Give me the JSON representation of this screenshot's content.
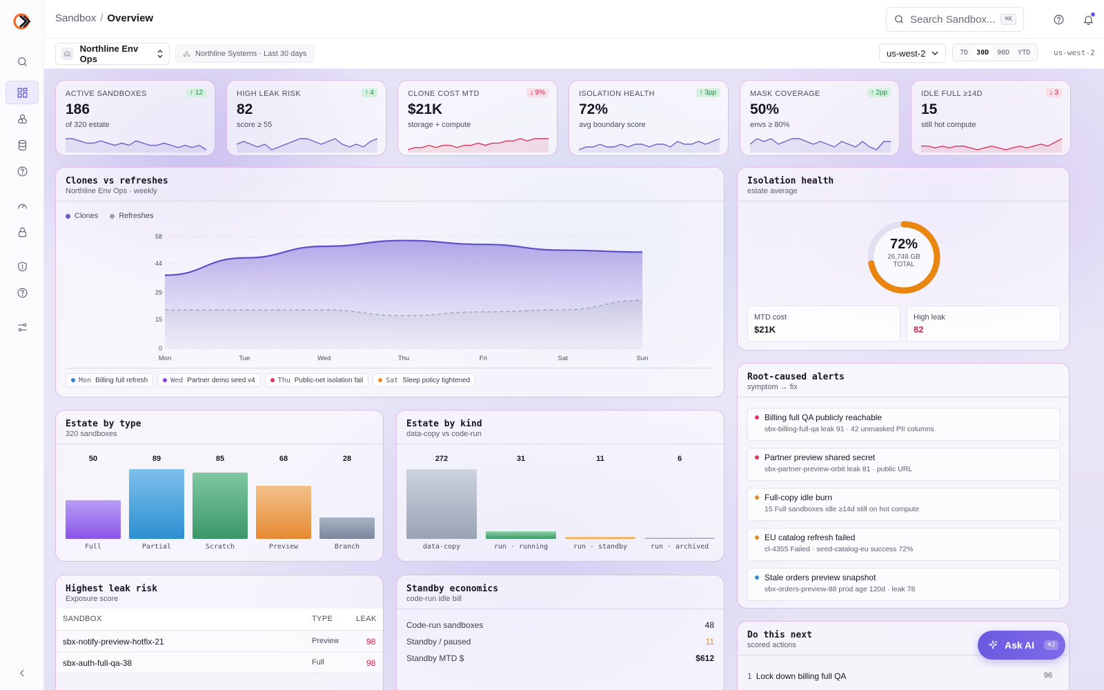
{
  "breadcrumb": {
    "root": "Sandbox",
    "separator": "/",
    "current": "Overview"
  },
  "search": {
    "placeholder": "Search Sandbox...",
    "shortcut": "⌘K"
  },
  "sidebar": {
    "items": [
      {
        "icon": "search-icon"
      },
      {
        "icon": "dashboard-icon",
        "active": true
      },
      {
        "icon": "cubes-icon"
      },
      {
        "icon": "database-icon"
      },
      {
        "icon": "help-circle-icon"
      },
      {
        "icon": "gauge-icon"
      },
      {
        "icon": "lock-icon"
      },
      {
        "icon": "shield-alert-icon"
      },
      {
        "icon": "help-circle-icon"
      },
      {
        "icon": "sliders-icon"
      }
    ],
    "collapse_icon": "chevron-left-icon"
  },
  "filters": {
    "environment": "Northline Env Ops",
    "org": "Northline Systems · Last 30 days",
    "region": "us-west-2",
    "ranges": [
      "7D",
      "30D",
      "90D",
      "YTD"
    ],
    "active_range": "30D",
    "region_label": "us-west-2"
  },
  "kpis": [
    {
      "label": "ACTIVE SANDBOXES",
      "value": "186",
      "sub": "of 320 estate",
      "delta": "↑ 12",
      "direction": "up",
      "spark_color": "#6a62c8",
      "spark": [
        6,
        6,
        5,
        4,
        4,
        5,
        4,
        3,
        4,
        3,
        5,
        4,
        3,
        3,
        4,
        3,
        2,
        3,
        2,
        3,
        1
      ]
    },
    {
      "label": "HIGH LEAK RISK",
      "value": "82",
      "sub": "score ≥ 55",
      "delta": "↑ 4",
      "direction": "up",
      "spark_color": "#6a62c8",
      "spark": [
        3,
        4,
        3,
        2,
        3,
        1,
        2,
        3,
        4,
        5,
        5,
        4,
        3,
        4,
        5,
        3,
        2,
        3,
        2,
        4,
        5
      ]
    },
    {
      "label": "CLONE COST MTD",
      "value": "$21K",
      "sub": "storage + compute",
      "delta": "↓ 9%",
      "direction": "down",
      "spark_color": "#e0355a",
      "spark": [
        1,
        2,
        2,
        3,
        2,
        3,
        3,
        2,
        3,
        3,
        4,
        3,
        4,
        4,
        5,
        5,
        6,
        5,
        6,
        6,
        6
      ]
    },
    {
      "label": "ISOLATION HEALTH",
      "value": "72%",
      "sub": "avg boundary score",
      "delta": "↑ 3pp",
      "direction": "up",
      "spark_color": "#6a62c8",
      "spark": [
        2,
        3,
        3,
        4,
        3,
        3,
        4,
        3,
        4,
        4,
        3,
        4,
        4,
        3,
        5,
        4,
        4,
        5,
        4,
        5,
        6
      ]
    },
    {
      "label": "MASK COVERAGE",
      "value": "50%",
      "sub": "envs ≥ 80%",
      "delta": "↑ 2pp",
      "direction": "up",
      "spark_color": "#6a62c8",
      "spark": [
        4,
        6,
        5,
        6,
        4,
        5,
        6,
        6,
        5,
        4,
        5,
        4,
        3,
        5,
        4,
        3,
        5,
        3,
        2,
        5,
        5
      ]
    },
    {
      "label": "IDLE FULL ≥14D",
      "value": "15",
      "sub": "still hot compute",
      "delta": "↓ 3",
      "direction": "down",
      "spark_color": "#e0355a",
      "spark": [
        3,
        3,
        2,
        3,
        2,
        3,
        3,
        2,
        1,
        2,
        3,
        2,
        1,
        2,
        3,
        2,
        3,
        4,
        3,
        5,
        7
      ]
    }
  ],
  "clones_chart": {
    "title": "Clones vs refreshes",
    "subtitle": "Northline Env Ops · weekly",
    "legend": [
      {
        "name": "Clones",
        "color": "#6a5ad0"
      },
      {
        "name": "Refreshes",
        "color": "#9aa0b5"
      }
    ],
    "annotations": [
      {
        "day": "Mon",
        "text": "Billing full refresh",
        "color": "#2f7fd8"
      },
      {
        "day": "Wed",
        "text": "Partner demo seed v4",
        "color": "#8a3de0"
      },
      {
        "day": "Thu",
        "text": "Public-net isolation fail",
        "color": "#e0355a"
      },
      {
        "day": "Sat",
        "text": "Sleep policy tightened",
        "color": "#e58a1e"
      }
    ]
  },
  "chart_data": {
    "type": "area",
    "categories": [
      "Mon",
      "Tue",
      "Wed",
      "Thu",
      "Fri",
      "Sat",
      "Sun"
    ],
    "series": [
      {
        "name": "Clones",
        "values": [
          38,
          47,
          53,
          56,
          54,
          51,
          50
        ]
      },
      {
        "name": "Refreshes",
        "values": [
          20,
          20,
          20,
          17,
          19,
          20,
          25
        ]
      }
    ],
    "yticks": [
      0,
      15,
      29,
      44,
      58
    ],
    "ylim": [
      0,
      58
    ],
    "legend_position": "top-left"
  },
  "isolation": {
    "title": "Isolation health",
    "subtitle": "estate average",
    "percent": "72%",
    "percent_value": 72,
    "size": "26,748 GB",
    "total_label": "TOTAL",
    "ring_color": "#e8860f",
    "stats": [
      {
        "label": "MTD cost",
        "value": "$21K",
        "color": "#15161f"
      },
      {
        "label": "High leak",
        "value": "82",
        "color": "#d6224a"
      }
    ]
  },
  "estate_type": {
    "title": "Estate by type",
    "subtitle": "320 sandboxes",
    "bars": [
      {
        "label": "Full",
        "value": "50",
        "n": 50,
        "top": "#b89cf5",
        "bottom": "#8a55e8"
      },
      {
        "label": "Partial",
        "value": "89",
        "n": 89,
        "top": "#7ec0ec",
        "bottom": "#2c8fd0"
      },
      {
        "label": "Scratch",
        "value": "85",
        "n": 85,
        "top": "#80c7a0",
        "bottom": "#3a9868"
      },
      {
        "label": "Preview",
        "value": "68",
        "n": 68,
        "top": "#f2c08a",
        "bottom": "#e58a30"
      },
      {
        "label": "Branch",
        "value": "28",
        "n": 28,
        "top": "#aab3c6",
        "bottom": "#7c879c"
      }
    ]
  },
  "estate_kind": {
    "title": "Estate by kind",
    "subtitle": "data-copy vs code-run",
    "bars": [
      {
        "label": "data-copy",
        "value": "272",
        "n": 272,
        "top": "#cdd3df",
        "bottom": "#9aa3b5"
      },
      {
        "label": "run · running",
        "value": "31",
        "n": 31,
        "top": "#8fd0a8",
        "bottom": "#3a9868"
      },
      {
        "label": "run · standby",
        "value": "11",
        "n": 11,
        "top": "#f6c88a",
        "bottom": "#f0a040"
      },
      {
        "label": "run · archived",
        "value": "6",
        "n": 6,
        "top": "#c8cdd8",
        "bottom": "#9aa3b5"
      }
    ]
  },
  "alerts": {
    "title": "Root-caused alerts",
    "subtitle": "symptom → fix",
    "items": [
      {
        "title": "Billing full QA publicly reachable",
        "sub": "sbx-billing-full-qa leak 91 · 42 unmasked PII columns",
        "color": "#e0355a"
      },
      {
        "title": "Partner preview shared secret",
        "sub": "sbx-partner-preview-orbit leak 81 · public URL",
        "color": "#e0355a"
      },
      {
        "title": "Full-copy idle burn",
        "sub": "15 Full sandboxes idle ≥14d still on hot compute",
        "color": "#e58a1e"
      },
      {
        "title": "EU catalog refresh failed",
        "sub": "cl-4355 Failed · seed-catalog-eu success 72%",
        "color": "#e58a1e"
      },
      {
        "title": "Stale orders preview snapshot",
        "sub": "sbx-orders-preview-88 prod age 120d · leak 78",
        "color": "#2f8fd0"
      }
    ]
  },
  "leak_table": {
    "title": "Highest leak risk",
    "subtitle": "Exposure score",
    "columns": [
      "SANDBOX",
      "TYPE",
      "LEAK"
    ],
    "rows": [
      {
        "sandbox": "sbx-notify-preview-hotfix-21",
        "type": "Preview",
        "leak": "98"
      },
      {
        "sandbox": "sbx-auth-full-qa-38",
        "type": "Full",
        "leak": "98"
      }
    ]
  },
  "standby": {
    "title": "Standby economics",
    "subtitle": "code-run idle bill",
    "rows": [
      {
        "label": "Code-run sandboxes",
        "value": "48",
        "color": "#15161f"
      },
      {
        "label": "Standby / paused",
        "value": "11",
        "color": "#e58a1e"
      },
      {
        "label": "Standby MTD $",
        "value": "$612",
        "color": "#15161f"
      }
    ]
  },
  "next": {
    "title": "Do this next",
    "subtitle": "scored actions",
    "first": {
      "num": "1",
      "text": "Lock down billing full QA",
      "score": "96"
    }
  },
  "ask_ai": {
    "label": "Ask AI",
    "shortcut": "⌘J"
  }
}
